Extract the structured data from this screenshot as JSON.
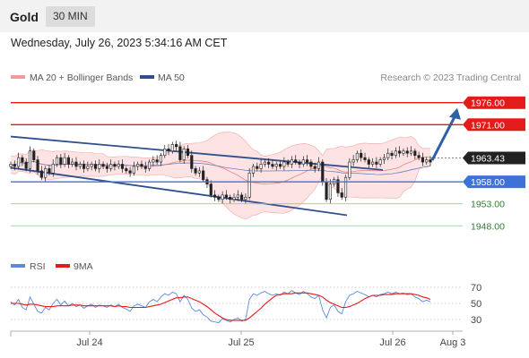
{
  "header": {
    "title": "Gold",
    "interval": "30 MIN",
    "timestamp": "Wednesday, July 26, 2023 5:34:16 AM CET"
  },
  "legend": {
    "bollinger": "MA 20 + Bollinger Bands",
    "ma50": "MA 50",
    "credit": "Research © 2023 Trading Central"
  },
  "colors": {
    "red_level": "#e31b1b",
    "blue_level": "#3b73d9",
    "green_level": "#2e7d32",
    "channel": "#2f4f8f",
    "band_fill": "#fde3e3",
    "ma20": "#f08080",
    "ma50": "#6e7fb8",
    "candle": "#222222",
    "rsi": "#5b8ad9",
    "rsi_ma": "#e31b1b",
    "arrow": "#2f5fa8",
    "price_tag": "#222222"
  },
  "chart_data": {
    "type": "candlestick",
    "instrument": "Gold",
    "interval": "30 MIN",
    "ylim": [
      1945,
      1979
    ],
    "x_ticks": [
      "Jul 24",
      "Jul 25",
      "Jul 26",
      "Aug 3"
    ],
    "current_price": 1963.43,
    "resistances": [
      1976.0,
      1971.0
    ],
    "pivot": 1958.0,
    "supports": [
      1953.0,
      1948.0
    ],
    "level_labels": {
      "r2": "1976.00",
      "r1": "1971.00",
      "current": "1963.43",
      "pivot": "1958.00",
      "s1": "1953.00",
      "s2": "1948.00"
    },
    "indicators": [
      "MA 20 + Bollinger Bands",
      "MA 50"
    ],
    "close": [
      1962.0,
      1961.5,
      1963.5,
      1962.5,
      1961.0,
      1965.0,
      1963.0,
      1960.5,
      1959.0,
      1961.0,
      1960.0,
      1962.0,
      1963.5,
      1962.0,
      1963.5,
      1962.0,
      1962.5,
      1961.5,
      1962.0,
      1961.0,
      1961.5,
      1962.0,
      1961.0,
      1962.0,
      1961.5,
      1961.0,
      1962.0,
      1961.5,
      1962.0,
      1961.0,
      1960.5,
      1960.0,
      1961.5,
      1962.0,
      1961.5,
      1961.0,
      1962.5,
      1963.0,
      1962.5,
      1964.0,
      1965.5,
      1965.0,
      1966.5,
      1966.0,
      1963.0,
      1965.5,
      1964.0,
      1961.0,
      1960.0,
      1960.5,
      1958.5,
      1957.5,
      1955.0,
      1954.5,
      1954.0,
      1955.0,
      1954.5,
      1954.0,
      1954.5,
      1955.0,
      1954.0,
      1954.5,
      1960.0,
      1961.5,
      1961.0,
      1962.0,
      1962.5,
      1962.0,
      1961.5,
      1962.0,
      1961.5,
      1962.5,
      1962.0,
      1963.0,
      1962.5,
      1962.0,
      1963.0,
      1962.5,
      1961.5,
      1961.0,
      1962.5,
      1958.0,
      1954.0,
      1957.5,
      1958.5,
      1955.5,
      1954.5,
      1959.0,
      1962.5,
      1963.0,
      1964.5,
      1963.5,
      1963.0,
      1962.0,
      1962.5,
      1962.0,
      1963.0,
      1963.5,
      1964.5,
      1964.0,
      1965.0,
      1964.5,
      1965.0,
      1964.5,
      1965.0,
      1964.0,
      1963.5,
      1962.5,
      1963.0,
      1962.5
    ],
    "arrow_target": 1976.0,
    "rsi": {
      "name": "RSI",
      "ma_name": "9MA",
      "ylim": [
        20,
        80
      ],
      "ticks": [
        70,
        50,
        30
      ],
      "values": [
        52,
        48,
        55,
        45,
        42,
        58,
        49,
        40,
        38,
        45,
        42,
        50,
        55,
        48,
        53,
        47,
        50,
        46,
        48,
        44,
        47,
        49,
        45,
        48,
        47,
        45,
        48,
        46,
        49,
        45,
        43,
        40,
        47,
        49,
        47,
        45,
        52,
        55,
        52,
        58,
        62,
        60,
        64,
        62,
        52,
        60,
        55,
        44,
        40,
        42,
        36,
        33,
        28,
        27,
        26,
        31,
        29,
        27,
        30,
        32,
        28,
        30,
        55,
        62,
        60,
        63,
        65,
        62,
        60,
        62,
        60,
        64,
        62,
        66,
        63,
        61,
        65,
        62,
        58,
        56,
        60,
        42,
        32,
        45,
        48,
        40,
        37,
        52,
        60,
        62,
        65,
        63,
        61,
        58,
        60,
        58,
        61,
        62,
        64,
        62,
        64,
        62,
        63,
        61,
        62,
        58,
        56,
        52,
        54,
        52
      ],
      "ma_values": [
        50,
        50,
        50,
        49,
        48,
        49,
        49,
        48,
        47,
        46,
        46,
        46,
        47,
        47,
        47,
        47,
        48,
        48,
        48,
        47,
        47,
        47,
        47,
        47,
        47,
        47,
        47,
        46,
        47,
        46,
        46,
        45,
        45,
        45,
        45,
        45,
        46,
        47,
        48,
        49,
        51,
        53,
        55,
        57,
        57,
        58,
        58,
        56,
        54,
        52,
        49,
        46,
        42,
        38,
        35,
        32,
        30,
        29,
        29,
        29,
        29,
        29,
        32,
        36,
        40,
        44,
        49,
        53,
        57,
        60,
        61,
        62,
        62,
        62,
        63,
        63,
        63,
        63,
        62,
        61,
        60,
        58,
        54,
        51,
        49,
        47,
        45,
        45,
        46,
        48,
        50,
        53,
        56,
        58,
        60,
        60,
        60,
        61,
        61,
        61,
        62,
        62,
        62,
        62,
        62,
        61,
        60,
        58,
        57,
        55
      ]
    }
  }
}
